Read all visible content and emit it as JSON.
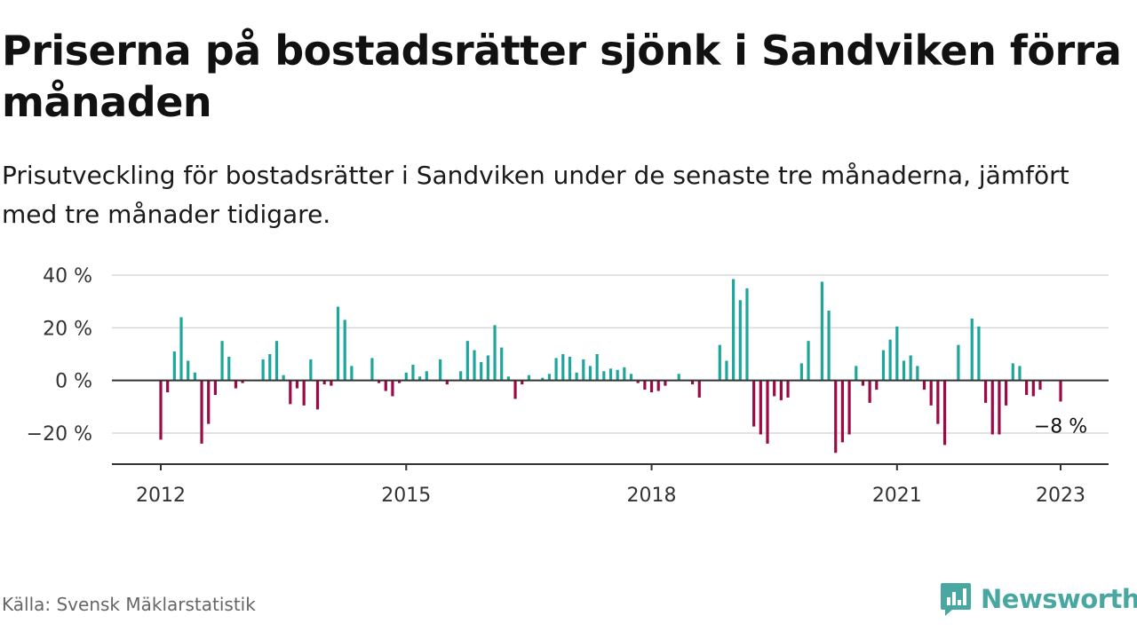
{
  "title": "Priserna på bostadsrätter sjönk i Sandviken förra månaden",
  "subtitle": "Prisutveckling för bostadsrätter i Sandviken under de senaste tre månaderna, jämfört med tre månader tidigare.",
  "source": "Källa: Svensk Mäklarstatistik",
  "brand": {
    "name": "Newsworthy",
    "icon": "bar-chart-icon",
    "color": "#48a8a1"
  },
  "colors": {
    "positive": "#1fa69c",
    "negative": "#9b0a46",
    "grid": "#d9d9d9",
    "axis": "#333333"
  },
  "chart_data": {
    "type": "bar",
    "title": "Priserna på bostadsrätter sjönk i Sandviken förra månaden",
    "xlabel": "",
    "ylabel": "",
    "y_unit": "%",
    "ylim": [
      -32,
      42
    ],
    "y_ticks": [
      {
        "value": 40,
        "label": "40 %"
      },
      {
        "value": 20,
        "label": "20 %"
      },
      {
        "value": 0,
        "label": "0 %"
      },
      {
        "value": -20,
        "label": "−20 %"
      }
    ],
    "x_ticks": [
      {
        "date": "2012-01",
        "label": "2012"
      },
      {
        "date": "2015-01",
        "label": "2015"
      },
      {
        "date": "2018-01",
        "label": "2018"
      },
      {
        "date": "2021-01",
        "label": "2021"
      },
      {
        "date": "2023-01",
        "label": "2023"
      }
    ],
    "grid": true,
    "annotation": {
      "date": "2023-01",
      "text": "−8 %"
    },
    "data": [
      [
        "2012-01",
        -22.5
      ],
      [
        "2012-02",
        -4.5
      ],
      [
        "2012-03",
        11
      ],
      [
        "2012-04",
        24
      ],
      [
        "2012-05",
        7.5
      ],
      [
        "2012-06",
        3
      ],
      [
        "2012-07",
        -24
      ],
      [
        "2012-08",
        -16.5
      ],
      [
        "2012-09",
        -5.5
      ],
      [
        "2012-10",
        15
      ],
      [
        "2012-11",
        9
      ],
      [
        "2012-12",
        -3
      ],
      [
        "2013-01",
        -1
      ],
      [
        "2013-04",
        8
      ],
      [
        "2013-05",
        10
      ],
      [
        "2013-06",
        15
      ],
      [
        "2013-07",
        2
      ],
      [
        "2013-08",
        -9
      ],
      [
        "2013-09",
        -3
      ],
      [
        "2013-10",
        -9.5
      ],
      [
        "2013-11",
        8
      ],
      [
        "2013-12",
        -11
      ],
      [
        "2014-01",
        -1.5
      ],
      [
        "2014-02",
        -2
      ],
      [
        "2014-03",
        28
      ],
      [
        "2014-04",
        23
      ],
      [
        "2014-05",
        5.5
      ],
      [
        "2014-08",
        8.5
      ],
      [
        "2014-09",
        -1
      ],
      [
        "2014-10",
        -4
      ],
      [
        "2014-11",
        -6
      ],
      [
        "2014-12",
        -1
      ],
      [
        "2015-01",
        3
      ],
      [
        "2015-02",
        6
      ],
      [
        "2015-03",
        1.5
      ],
      [
        "2015-04",
        3.5
      ],
      [
        "2015-06",
        8
      ],
      [
        "2015-07",
        -1.5
      ],
      [
        "2015-09",
        3.5
      ],
      [
        "2015-10",
        15
      ],
      [
        "2015-11",
        11.5
      ],
      [
        "2015-12",
        7
      ],
      [
        "2016-01",
        9.5
      ],
      [
        "2016-02",
        21
      ],
      [
        "2016-03",
        12.5
      ],
      [
        "2016-04",
        1.5
      ],
      [
        "2016-05",
        -7
      ],
      [
        "2016-06",
        -1.5
      ],
      [
        "2016-07",
        2
      ],
      [
        "2016-09",
        1
      ],
      [
        "2016-10",
        2.5
      ],
      [
        "2016-11",
        8.5
      ],
      [
        "2016-12",
        10
      ],
      [
        "2017-01",
        9
      ],
      [
        "2017-02",
        3
      ],
      [
        "2017-03",
        8
      ],
      [
        "2017-04",
        5.5
      ],
      [
        "2017-05",
        10
      ],
      [
        "2017-06",
        3.5
      ],
      [
        "2017-07",
        4.5
      ],
      [
        "2017-08",
        4
      ],
      [
        "2017-09",
        5
      ],
      [
        "2017-10",
        2.5
      ],
      [
        "2017-11",
        -1
      ],
      [
        "2017-12",
        -3.5
      ],
      [
        "2018-01",
        -4.5
      ],
      [
        "2018-02",
        -4
      ],
      [
        "2018-03",
        -2
      ],
      [
        "2018-05",
        2.5
      ],
      [
        "2018-07",
        -1.5
      ],
      [
        "2018-08",
        -6.5
      ],
      [
        "2018-11",
        13.5
      ],
      [
        "2018-12",
        7.5
      ],
      [
        "2019-01",
        38.5
      ],
      [
        "2019-02",
        30.5
      ],
      [
        "2019-03",
        35
      ],
      [
        "2019-04",
        -17.5
      ],
      [
        "2019-05",
        -20.5
      ],
      [
        "2019-06",
        -24
      ],
      [
        "2019-07",
        -6
      ],
      [
        "2019-08",
        -7.5
      ],
      [
        "2019-09",
        -6.5
      ],
      [
        "2019-11",
        6.5
      ],
      [
        "2019-12",
        15
      ],
      [
        "2020-02",
        37.5
      ],
      [
        "2020-03",
        26.5
      ],
      [
        "2020-04",
        -27.5
      ],
      [
        "2020-05",
        -23.5
      ],
      [
        "2020-06",
        -20.5
      ],
      [
        "2020-07",
        5.5
      ],
      [
        "2020-08",
        -2
      ],
      [
        "2020-09",
        -8.5
      ],
      [
        "2020-10",
        -3.5
      ],
      [
        "2020-11",
        11.5
      ],
      [
        "2020-12",
        15.5
      ],
      [
        "2021-01",
        20.5
      ],
      [
        "2021-02",
        7.5
      ],
      [
        "2021-03",
        9.5
      ],
      [
        "2021-04",
        5.5
      ],
      [
        "2021-05",
        -3.5
      ],
      [
        "2021-06",
        -9.5
      ],
      [
        "2021-07",
        -16.5
      ],
      [
        "2021-08",
        -24.5
      ],
      [
        "2021-10",
        13.5
      ],
      [
        "2021-12",
        23.5
      ],
      [
        "2022-01",
        20.5
      ],
      [
        "2022-02",
        -8.5
      ],
      [
        "2022-03",
        -20.5
      ],
      [
        "2022-04",
        -20.5
      ],
      [
        "2022-05",
        -9.5
      ],
      [
        "2022-06",
        6.5
      ],
      [
        "2022-07",
        5.5
      ],
      [
        "2022-08",
        -5.5
      ],
      [
        "2022-09",
        -6
      ],
      [
        "2022-10",
        -3.5
      ],
      [
        "2023-01",
        -8
      ]
    ]
  }
}
